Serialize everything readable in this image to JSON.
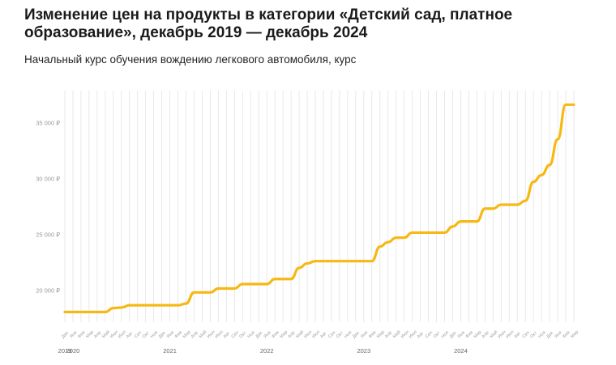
{
  "chart_data": {
    "type": "line",
    "title": "Изменение цен на продукты в категории «Детский сад, платное образование», декабрь 2019 — декабрь 2024",
    "subtitle": "Начальный курс обучения вождению легкового автомобиля, курс",
    "xlabel": "",
    "ylabel": "",
    "ylim": [
      17000,
      38000
    ],
    "grid": "vertical",
    "line_color": "#F7B813",
    "y_ticks": [
      {
        "value": 20000,
        "label": "20 000 ₽"
      },
      {
        "value": 25000,
        "label": "25 000 ₽"
      },
      {
        "value": 30000,
        "label": "30 000 ₽"
      },
      {
        "value": 35000,
        "label": "35 000 ₽"
      }
    ],
    "month_labels": [
      "Дек",
      "Янв",
      "Фев",
      "Мар",
      "Апр",
      "Май",
      "Июн",
      "Июл",
      "Авг",
      "Сен",
      "Окт",
      "Ноя"
    ],
    "year_labels": [
      {
        "text": "2019",
        "index": 0
      },
      {
        "text": "2020",
        "index": 1
      },
      {
        "text": "2021",
        "index": 13
      },
      {
        "text": "2022",
        "index": 25
      },
      {
        "text": "2023",
        "index": 37
      },
      {
        "text": "2024",
        "index": 49
      }
    ],
    "series": [
      {
        "values": [
          18050,
          18050,
          18050,
          18050,
          18050,
          18050,
          18400,
          18450,
          18650,
          18650,
          18650,
          18650,
          18650,
          18650,
          18650,
          18800,
          19800,
          19800,
          19800,
          20150,
          20150,
          20150,
          20550,
          20550,
          20550,
          20550,
          21000,
          21000,
          21000,
          22000,
          22400,
          22600,
          22600,
          22600,
          22600,
          22600,
          22600,
          22600,
          22600,
          23900,
          24300,
          24700,
          24700,
          25150,
          25150,
          25150,
          25150,
          25150,
          25700,
          26150,
          26150,
          26150,
          27300,
          27300,
          27650,
          27650,
          27650,
          28000,
          29700,
          30300,
          31200,
          33500,
          36600,
          36600
        ]
      }
    ]
  }
}
